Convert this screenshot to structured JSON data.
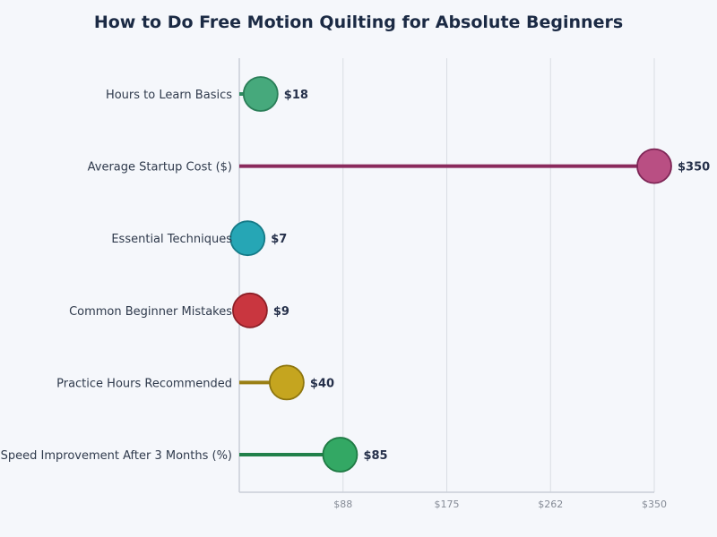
{
  "chart_data": {
    "type": "lollipop",
    "title": "How to Do Free Motion Quilting for Absolute Beginners",
    "xlabel": "",
    "ylabel": "",
    "xlim": [
      0,
      350
    ],
    "x_ticks": [
      "$88",
      "$175",
      "$262",
      "$350"
    ],
    "x_tick_values": [
      87.5,
      175,
      262.5,
      350
    ],
    "grid": true,
    "categories": [
      "Hours to Learn Basics",
      "Average Startup Cost ($)",
      "Essential Techniques",
      "Common Beginner Mistakes",
      "Practice Hours Recommended",
      "Speed Improvement After 3 Months (%)"
    ],
    "values": [
      18,
      350,
      7,
      9,
      40,
      85
    ],
    "value_labels": [
      "$18",
      "$350",
      "$7",
      "$9",
      "$40",
      "$85"
    ],
    "colors": [
      {
        "fill": "#46a97c",
        "stroke": "#2a7e58",
        "line": "#2f8a60"
      },
      {
        "fill": "#b94f83",
        "stroke": "#7e2656",
        "line": "#8a2a5c"
      },
      {
        "fill": "#26a6b5",
        "stroke": "#157a87",
        "line": "#1a8895"
      },
      {
        "fill": "#c9363f",
        "stroke": "#8e1f27",
        "line": "#9e222b"
      },
      {
        "fill": "#c5a51f",
        "stroke": "#8e760f",
        "line": "#9a7f14"
      },
      {
        "fill": "#33a864",
        "stroke": "#1f7a44",
        "line": "#21804a"
      }
    ]
  }
}
